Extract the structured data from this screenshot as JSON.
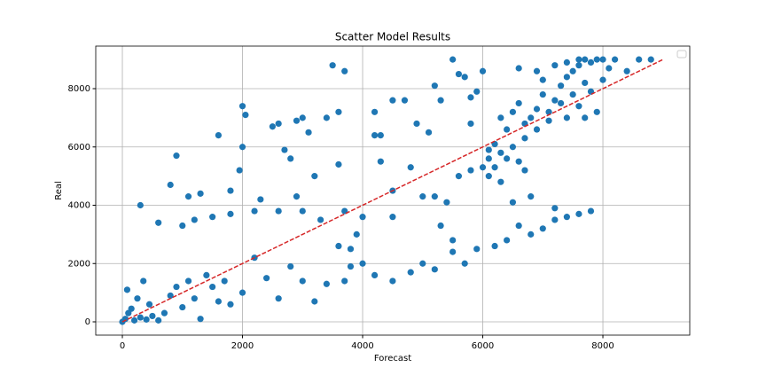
{
  "chart_data": {
    "type": "scatter",
    "title": "Scatter Model Results",
    "x_label": "Forecast",
    "y_label": "Real",
    "xlim": [
      -443,
      9446
    ],
    "ylim": [
      -456,
      9460
    ],
    "xticks": [
      0,
      2000,
      4000,
      6000,
      8000
    ],
    "yticks": [
      0,
      2000,
      4000,
      6000,
      8000
    ],
    "grid": true,
    "series": [
      {
        "color": "#1f77b4",
        "x": [
          0,
          50,
          100,
          200,
          300,
          400,
          500,
          600,
          150,
          80,
          250,
          350,
          450,
          700,
          800,
          900,
          1000,
          1100,
          1200,
          1300,
          1400,
          1500,
          1600,
          1700,
          1800,
          2000,
          2200,
          2400,
          2600,
          2800,
          3000,
          3200,
          3400,
          3600,
          3700,
          3800,
          4000,
          4200,
          4500,
          4800,
          5000,
          5200,
          5500,
          5700,
          5900,
          6200,
          6400,
          6600,
          6800,
          7000,
          7200,
          7400,
          7600,
          7800,
          6500,
          6800,
          7200,
          300,
          900,
          800,
          1100,
          1300,
          1600,
          2000,
          2050,
          1800,
          1950,
          2000,
          2500,
          2600,
          2900,
          3000,
          3100,
          2700,
          2800,
          3400,
          3500,
          3700,
          3600,
          3200,
          3600,
          2300,
          2900,
          1000,
          600,
          1200,
          1500,
          1800,
          2200,
          2600,
          3000,
          3300,
          3700,
          4200,
          4300,
          4200,
          4500,
          4700,
          4900,
          5100,
          5200,
          5300,
          5500,
          5700,
          5800,
          5900,
          6000,
          5600,
          5800,
          4000,
          4300,
          4500,
          4800,
          5000,
          5200,
          5400,
          5600,
          5800,
          6000,
          6100,
          6200,
          6300,
          6100,
          6300,
          6400,
          6600,
          6700,
          5300,
          5500,
          3900,
          3800,
          4500,
          6300,
          6400,
          6500,
          6600,
          6700,
          6800,
          6900,
          7000,
          7100,
          7200,
          7300,
          7400,
          7500,
          7600,
          7700,
          7800,
          7900,
          8000,
          8200,
          8400,
          8600,
          8800,
          7700,
          7500,
          7300,
          7100,
          6900,
          6700,
          6500,
          7400,
          7600,
          7800,
          8000,
          7900,
          7700,
          6200,
          6100,
          8100,
          6600,
          6900,
          7000,
          7200,
          7400,
          7600
        ],
        "values": [
          0,
          100,
          300,
          50,
          150,
          80,
          200,
          50,
          450,
          1100,
          800,
          1400,
          600,
          300,
          900,
          1200,
          500,
          1400,
          800,
          100,
          1600,
          1200,
          700,
          1400,
          600,
          1000,
          2200,
          1500,
          800,
          1900,
          1400,
          700,
          1300,
          2600,
          1400,
          1900,
          2000,
          1600,
          1400,
          1700,
          2000,
          1800,
          2400,
          2000,
          2500,
          2600,
          2800,
          3300,
          3000,
          3200,
          3500,
          3600,
          3700,
          3800,
          4100,
          4300,
          3900,
          4000,
          5700,
          4700,
          4300,
          4400,
          6400,
          7400,
          7100,
          4500,
          5200,
          6000,
          6700,
          6800,
          6900,
          7000,
          6500,
          5900,
          5600,
          7000,
          8800,
          8600,
          7200,
          5000,
          5400,
          4200,
          4300,
          3300,
          3400,
          3500,
          3600,
          3700,
          3800,
          3800,
          3800,
          3500,
          3800,
          6400,
          6400,
          7200,
          7600,
          7600,
          6800,
          6500,
          8100,
          7600,
          9000,
          8400,
          6800,
          7900,
          8600,
          8500,
          7700,
          3600,
          5500,
          4500,
          5300,
          4300,
          4300,
          4100,
          5000,
          5200,
          5300,
          5600,
          5300,
          5800,
          5000,
          4800,
          5600,
          5500,
          5200,
          3300,
          2800,
          3000,
          2500,
          3600,
          7000,
          6600,
          7200,
          7500,
          6800,
          7000,
          7300,
          7800,
          7200,
          7600,
          8100,
          8400,
          8600,
          8800,
          9000,
          8900,
          9000,
          9000,
          9000,
          8600,
          9000,
          9000,
          8200,
          7800,
          7500,
          6900,
          6600,
          6300,
          6000,
          7000,
          7400,
          7900,
          8300,
          7200,
          7000,
          6100,
          5900,
          8700,
          8700,
          8600,
          8300,
          8800,
          8900,
          9000
        ]
      }
    ],
    "reference_line": {
      "x": [
        0,
        9000
      ],
      "y": [
        0,
        9000
      ],
      "color": "#d62728"
    }
  }
}
